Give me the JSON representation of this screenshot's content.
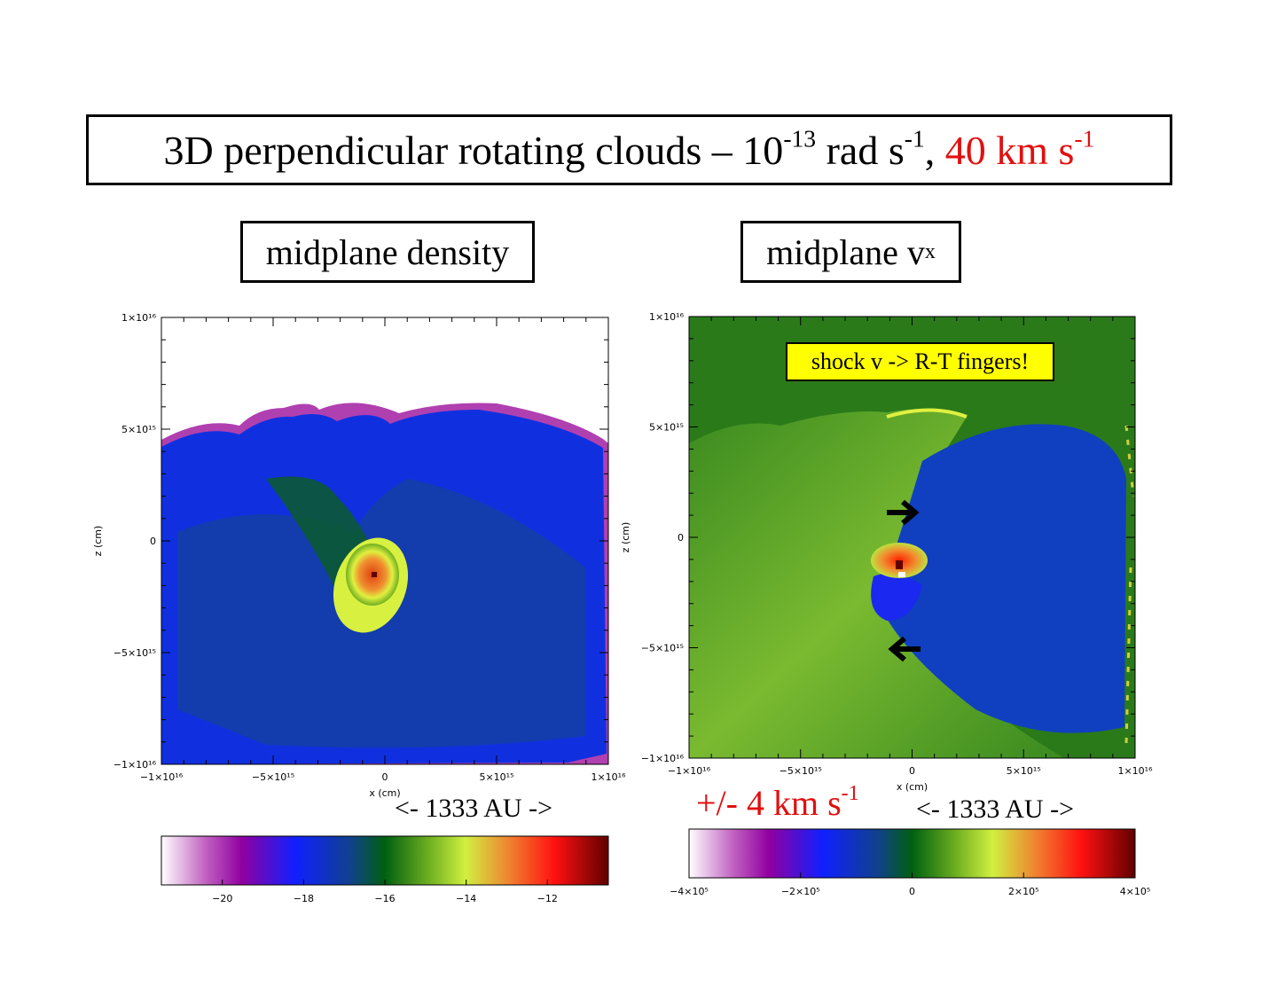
{
  "title": {
    "part1": "3D perpendicular rotating clouds – 10",
    "exp1": "-13",
    "part2": " rad s",
    "exp2": "-1",
    "part3": ", ",
    "red": "40 km s",
    "red_exp": "-1"
  },
  "panel_labels": {
    "left": "midplane density",
    "right_base": "midplane v",
    "right_sub": "x"
  },
  "annotations": {
    "shock_note": "shock v -> R-T fingers!",
    "scale_left": "<- 1333 AU ->",
    "scale_right": "<- 1333 AU ->",
    "velocity_range": "+/- 4 km s",
    "velocity_range_exp": "-1"
  },
  "colors": {
    "red_text": "#e01010",
    "note_bg": "#ffff00"
  },
  "chart_data": [
    {
      "type": "heatmap",
      "title": "midplane density",
      "xlabel": "x (cm)",
      "ylabel": "z (cm)",
      "xlim": [
        -1e+16,
        1e+16
      ],
      "ylim": [
        -1e+16,
        1e+16
      ],
      "xticks": [
        -1e+16,
        -5000000000000000.0,
        0,
        5000000000000000.0,
        1e+16
      ],
      "xtick_labels": [
        "−1×10¹⁶",
        "−5×10¹⁵",
        "0",
        "5×10¹⁵",
        "1×10¹⁶"
      ],
      "yticks": [
        -1e+16,
        -5000000000000000.0,
        0,
        5000000000000000.0,
        1e+16
      ],
      "ytick_labels": [
        "−1×10¹⁶",
        "−5×10¹⁵",
        "0",
        "5×10¹⁵",
        "1×10¹⁶"
      ],
      "colorbar": {
        "range": [
          -21.5,
          -10.5
        ],
        "ticks": [
          -20,
          -18,
          -16,
          -14,
          -12
        ],
        "tick_labels": [
          "−20",
          "−18",
          "−16",
          "−14",
          "−12"
        ]
      }
    },
    {
      "type": "heatmap",
      "title": "midplane v_x",
      "xlabel": "x (cm)",
      "ylabel": "z (cm)",
      "xlim": [
        -1e+16,
        1e+16
      ],
      "ylim": [
        -1e+16,
        1e+16
      ],
      "xticks": [
        -1e+16,
        -5000000000000000.0,
        0,
        5000000000000000.0,
        1e+16
      ],
      "xtick_labels": [
        "−1×10¹⁶",
        "−5×10¹⁵",
        "0",
        "5×10¹⁵",
        "1×10¹⁶"
      ],
      "yticks": [
        -1e+16,
        -5000000000000000.0,
        0,
        5000000000000000.0,
        1e+16
      ],
      "ytick_labels": [
        "−1×10¹⁶",
        "−5×10¹⁵",
        "0",
        "5×10¹⁵",
        "1×10¹⁶"
      ],
      "colorbar": {
        "range": [
          -400000.0,
          400000.0
        ],
        "ticks": [
          -400000.0,
          -200000.0,
          0,
          200000.0,
          400000.0
        ],
        "tick_labels": [
          "−4×10⁵",
          "−2×10⁵",
          "0",
          "2×10⁵",
          "4×10⁵"
        ]
      }
    }
  ]
}
